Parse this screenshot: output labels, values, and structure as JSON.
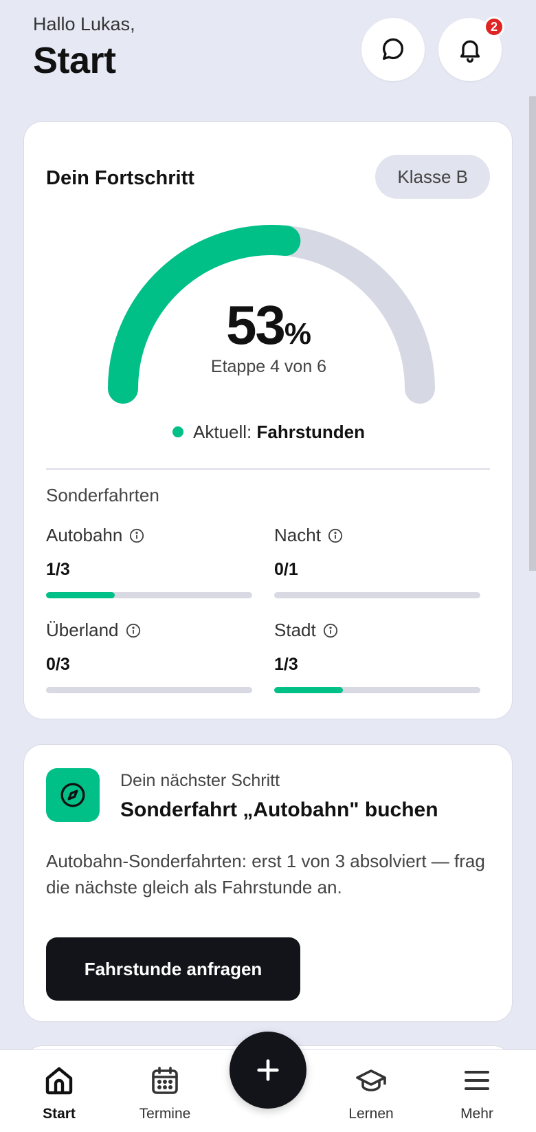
{
  "header": {
    "greeting": "Hallo Lukas,",
    "title": "Start",
    "notification_count": "2",
    "chat_icon": "chat-bubble-icon",
    "bell_icon": "bell-icon"
  },
  "progress": {
    "title": "Dein Fortschritt",
    "class_label": "Klasse B",
    "percent": "53",
    "percent_sign": "%",
    "percent_value": 0.53,
    "stage_text": "Etappe 4 von 6",
    "current_prefix": "Aktuell:",
    "current_value": "Fahrstunden",
    "accent_color": "#00c087",
    "track_color": "#d6d8e4",
    "special_title": "Sonderfahrten",
    "specials": [
      {
        "name": "Autobahn",
        "count": "1/3",
        "fraction": 0.333
      },
      {
        "name": "Nacht",
        "count": "0/1",
        "fraction": 0
      },
      {
        "name": "Überland",
        "count": "0/3",
        "fraction": 0
      },
      {
        "name": "Stadt",
        "count": "1/3",
        "fraction": 0.333
      }
    ]
  },
  "next_step": {
    "icon": "compass-icon",
    "kicker": "Dein nächster Schritt",
    "title": "Sonderfahrt „Autobahn\" buchen",
    "description": "Autobahn-Sonderfahrten: erst 1 von 3 absolviert — frag die nächste gleich als Fahrstunde an.",
    "cta_label": "Fahrstunde anfragen"
  },
  "nav": {
    "items": [
      {
        "label": "Start",
        "icon": "home-icon"
      },
      {
        "label": "Termine",
        "icon": "calendar-icon"
      },
      {
        "label": "Lernen",
        "icon": "graduation-cap-icon"
      },
      {
        "label": "Mehr",
        "icon": "menu-icon"
      }
    ],
    "fab_icon": "plus-icon"
  }
}
